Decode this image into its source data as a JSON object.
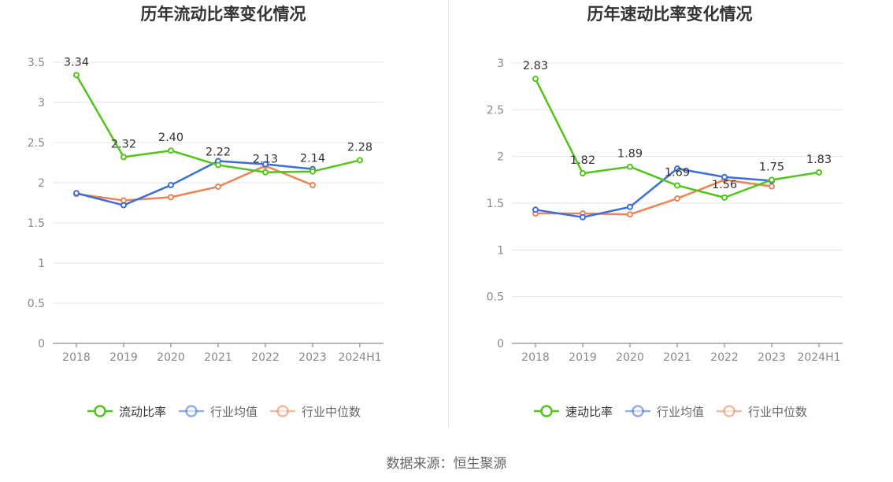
{
  "footer": "数据来源：恒生聚源",
  "chart_data": [
    {
      "type": "line",
      "title": "历年流动比率变化情况",
      "categories": [
        "2018",
        "2019",
        "2020",
        "2021",
        "2022",
        "2023",
        "2024H1"
      ],
      "ylim": [
        0,
        3.5
      ],
      "yticks": [
        0,
        0.5,
        1,
        1.5,
        2,
        2.5,
        3,
        3.5
      ],
      "ytick_labels": [
        "0",
        "0.5",
        "1",
        "1.5",
        "2",
        "2.5",
        "3",
        "3.5"
      ],
      "grid": true,
      "legend_position": "bottom",
      "series": [
        {
          "name": "流动比率",
          "color": "#52c41a",
          "values": [
            3.34,
            2.32,
            2.4,
            2.22,
            2.13,
            2.14,
            2.28
          ],
          "labels": [
            "3.34",
            "2.32",
            "2.40",
            "2.22",
            "2.13",
            "2.14",
            "2.28"
          ]
        },
        {
          "name": "行业均值",
          "color": "#3a6fd8",
          "values": [
            1.87,
            1.72,
            1.97,
            2.27,
            2.23,
            2.17,
            null
          ]
        },
        {
          "name": "行业中位数",
          "color": "#ee8355",
          "values": [
            1.86,
            1.78,
            1.82,
            1.95,
            2.21,
            1.97,
            null
          ]
        }
      ]
    },
    {
      "type": "line",
      "title": "历年速动比率变化情况",
      "categories": [
        "2018",
        "2019",
        "2020",
        "2021",
        "2022",
        "2023",
        "2024H1"
      ],
      "ylim": [
        0,
        3
      ],
      "yticks": [
        0,
        0.5,
        1,
        1.5,
        2,
        2.5,
        3
      ],
      "ytick_labels": [
        "0",
        "0.5",
        "1",
        "1.5",
        "2",
        "2.5",
        "3"
      ],
      "grid": true,
      "legend_position": "bottom",
      "series": [
        {
          "name": "速动比率",
          "color": "#52c41a",
          "values": [
            2.83,
            1.82,
            1.89,
            1.69,
            1.56,
            1.75,
            1.83
          ],
          "labels": [
            "2.83",
            "1.82",
            "1.89",
            "1.69",
            "1.56",
            "1.75",
            "1.83"
          ]
        },
        {
          "name": "行业均值",
          "color": "#3a6fd8",
          "values": [
            1.43,
            1.35,
            1.46,
            1.87,
            1.78,
            1.74,
            null
          ]
        },
        {
          "name": "行业中位数",
          "color": "#ee8355",
          "values": [
            1.39,
            1.39,
            1.38,
            1.55,
            1.75,
            1.68,
            null
          ]
        }
      ]
    }
  ]
}
